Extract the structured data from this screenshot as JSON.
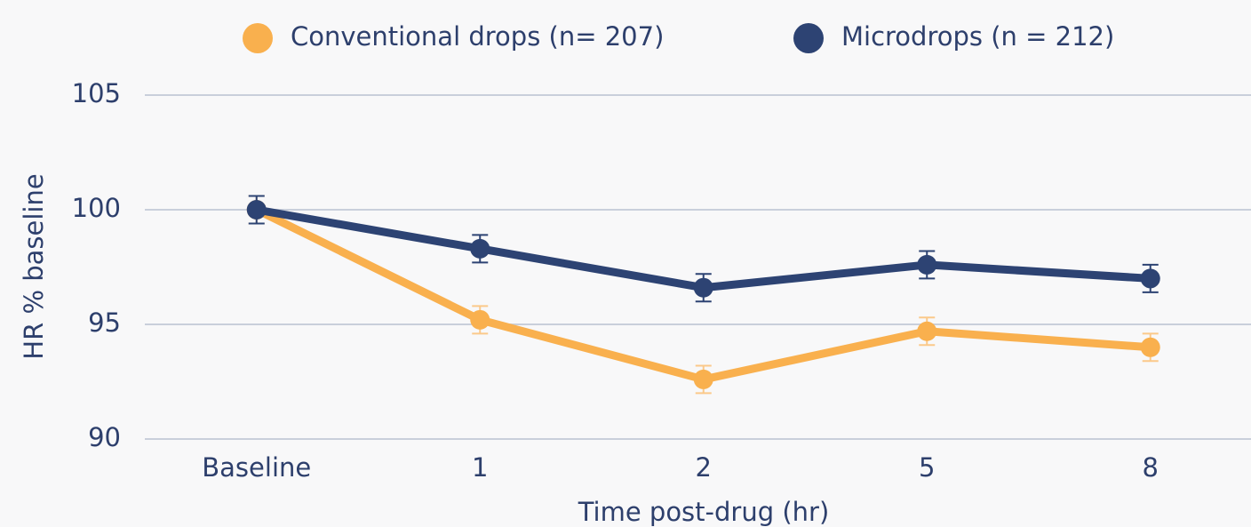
{
  "chart_data": {
    "type": "line",
    "x_label": "Time post-drug (hr)",
    "y_label": "HR % baseline",
    "categories": [
      "Baseline",
      "1",
      "2",
      "5",
      "8"
    ],
    "series": [
      {
        "name": "Conventional drops (n= 207)",
        "color": "#f9b04e",
        "values": [
          100,
          95.2,
          92.6,
          94.7,
          94.0
        ],
        "errors": [
          0.6,
          0.6,
          0.6,
          0.6,
          0.6
        ]
      },
      {
        "name": "Microdrops (n = 212)",
        "color": "#2d4373",
        "values": [
          100,
          98.3,
          96.6,
          97.6,
          97.0
        ],
        "errors": [
          0.6,
          0.6,
          0.6,
          0.6,
          0.6
        ]
      }
    ],
    "ylim": [
      90,
      105
    ],
    "yticks": [
      90,
      95,
      100,
      105
    ],
    "grid": true,
    "legend": "top"
  }
}
